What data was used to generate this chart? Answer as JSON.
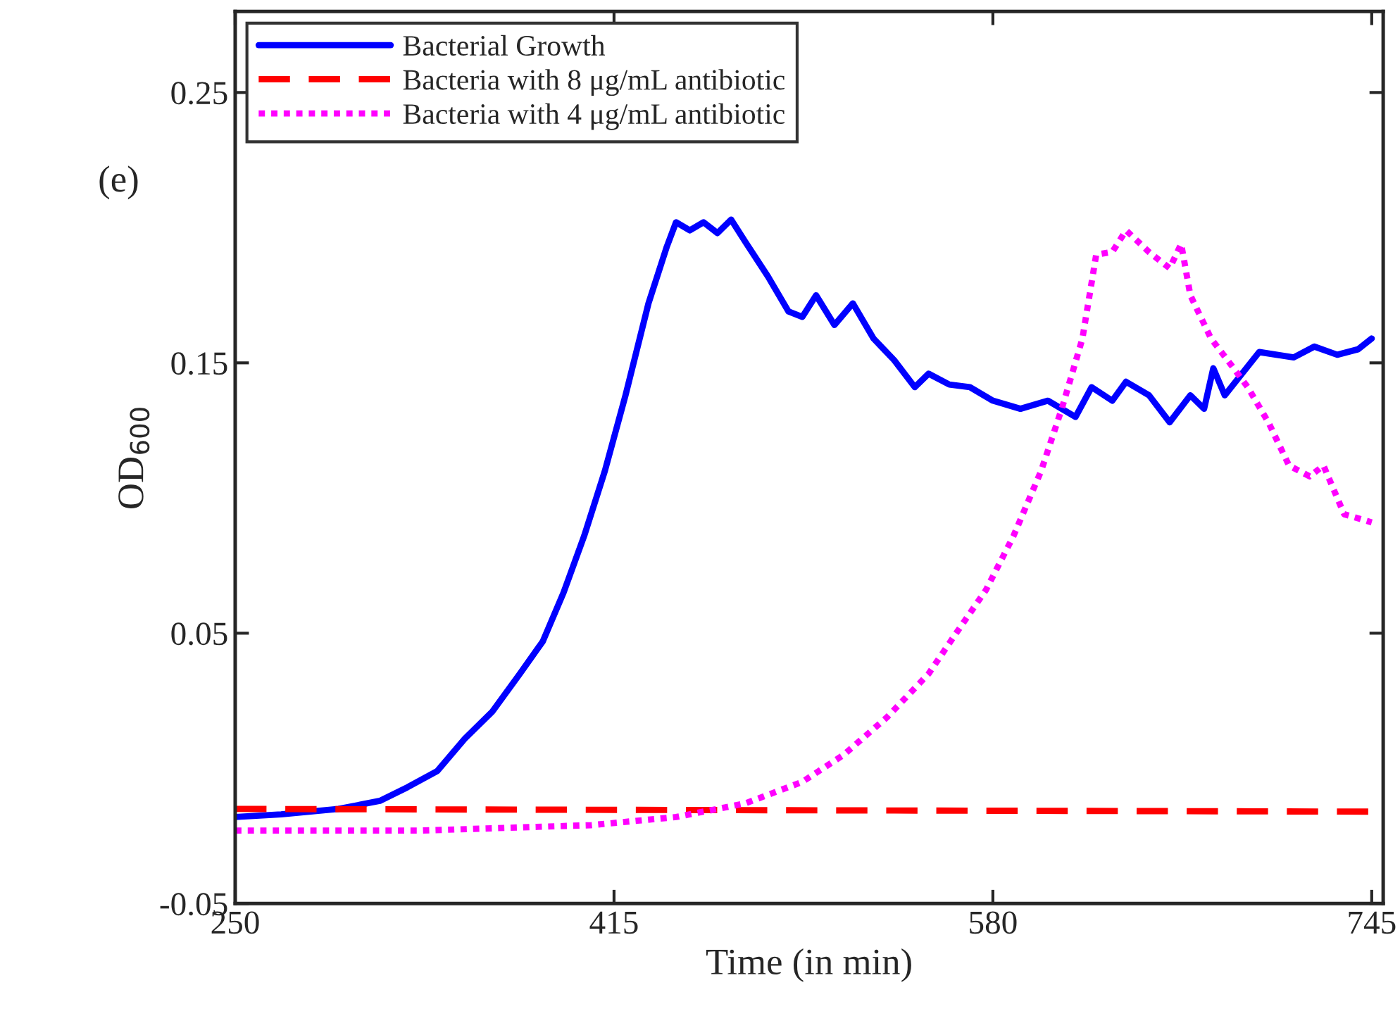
{
  "chart_data": {
    "type": "line",
    "xlabel": "Time (in min)",
    "ylabel": "OD$_{600}$",
    "annotations": [
      "(e)"
    ],
    "xlim": [
      250,
      750
    ],
    "xticks": [
      250,
      415,
      580,
      745
    ],
    "ylim": [
      -0.05,
      0.28
    ],
    "yticks": [
      -0.05,
      0.05,
      0.15,
      0.25
    ],
    "grid": false,
    "legend": "top left",
    "series": [
      {
        "name": "Bacterial Growth",
        "color": "#0000ff",
        "line_style": "solid",
        "x": [
          250,
          270,
          295,
          313,
          325,
          338,
          350,
          362,
          374,
          384,
          393,
          402,
          411,
          420,
          430,
          438,
          442,
          448,
          454,
          460,
          466,
          472,
          482,
          491,
          497,
          503,
          511,
          519,
          528,
          537,
          546,
          552,
          561,
          570,
          580,
          592,
          604,
          616,
          623,
          632,
          638,
          648,
          657,
          666,
          672,
          676,
          681,
          696,
          711,
          720,
          730,
          739,
          745
        ],
        "values": [
          -0.018,
          -0.017,
          -0.015,
          -0.012,
          -0.007,
          -0.001,
          0.011,
          0.021,
          0.035,
          0.047,
          0.065,
          0.086,
          0.11,
          0.138,
          0.172,
          0.193,
          0.202,
          0.199,
          0.202,
          0.198,
          0.203,
          0.195,
          0.182,
          0.169,
          0.167,
          0.175,
          0.164,
          0.172,
          0.159,
          0.151,
          0.141,
          0.146,
          0.142,
          0.141,
          0.136,
          0.133,
          0.136,
          0.13,
          0.141,
          0.136,
          0.143,
          0.138,
          0.128,
          0.138,
          0.133,
          0.148,
          0.138,
          0.154,
          0.152,
          0.156,
          0.153,
          0.155,
          0.159
        ]
      },
      {
        "name": "Bacteria with 8 μg/mL antibiotic",
        "color": "#ff0000",
        "line_style": "dashed",
        "x": [
          250,
          745
        ],
        "values": [
          -0.015,
          -0.016
        ]
      },
      {
        "name": "Bacteria with 4 μg/mL antibiotic",
        "color": "#ff00ff",
        "line_style": "dotted",
        "x": [
          250,
          331,
          405,
          442,
          472,
          497,
          515,
          534,
          552,
          564,
          577,
          589,
          601,
          610,
          619,
          625,
          632,
          638,
          648,
          657,
          662,
          666,
          675,
          684,
          691,
          700,
          709,
          718,
          724,
          733,
          745
        ],
        "values": [
          -0.023,
          -0.023,
          -0.021,
          -0.018,
          -0.013,
          -0.005,
          0.005,
          0.019,
          0.035,
          0.05,
          0.066,
          0.086,
          0.11,
          0.133,
          0.159,
          0.19,
          0.191,
          0.199,
          0.191,
          0.185,
          0.194,
          0.175,
          0.159,
          0.149,
          0.141,
          0.128,
          0.112,
          0.108,
          0.112,
          0.094,
          0.091
        ]
      }
    ]
  }
}
